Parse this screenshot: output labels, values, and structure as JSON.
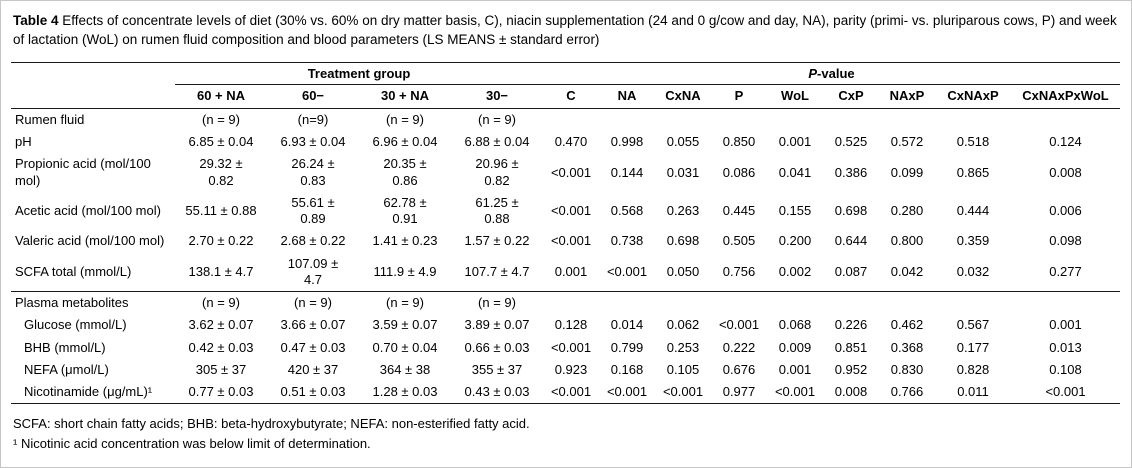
{
  "caption": {
    "label": "Table 4",
    "text": " Effects of concentrate levels of diet (30% vs. 60% on dry matter basis, C), niacin supplementation (24 and 0 g/cow and day, NA), parity (primi- vs. pluriparous cows, P) and week of lactation (WoL) on rumen fluid composition and blood parameters (LS MEANS ± standard error)"
  },
  "table": {
    "group_headers": {
      "treatment": "Treatment group",
      "pvalue_italic": "P",
      "pvalue_rest": "-value"
    },
    "columns": [
      "60 + NA",
      "60−",
      "30 + NA",
      "30−",
      "C",
      "NA",
      "CxNA",
      "P",
      "WoL",
      "CxP",
      "NAxP",
      "CxNAxP",
      "CxNAxPxWoL"
    ],
    "rows": [
      {
        "label": "Rumen fluid",
        "section": true,
        "cells": [
          "(n = 9)",
          "(n=9)",
          "(n = 9)",
          "(n = 9)",
          "",
          "",
          "",
          "",
          "",
          "",
          "",
          "",
          ""
        ]
      },
      {
        "label": "pH",
        "cells": [
          "6.85 ± 0.04",
          "6.93 ± 0.04",
          "6.96 ± 0.04",
          "6.88 ± 0.04",
          "0.470",
          "0.998",
          "0.055",
          "0.850",
          "0.001",
          "0.525",
          "0.572",
          "0.518",
          "0.124"
        ]
      },
      {
        "label": "Propionic acid (mol/100 mol)",
        "cells": [
          "29.32 ± 0.82",
          "26.24 ± 0.83",
          "20.35 ± 0.86",
          "20.96 ± 0.82",
          "<0.001",
          "0.144",
          "0.031",
          "0.086",
          "0.041",
          "0.386",
          "0.099",
          "0.865",
          "0.008"
        ]
      },
      {
        "label": "Acetic acid (mol/100 mol)",
        "cells": [
          "55.11 ± 0.88",
          "55.61 ± 0.89",
          "62.78 ± 0.91",
          "61.25 ± 0.88",
          "<0.001",
          "0.568",
          "0.263",
          "0.445",
          "0.155",
          "0.698",
          "0.280",
          "0.444",
          "0.006"
        ]
      },
      {
        "label": "Valeric acid (mol/100 mol)",
        "cells": [
          "2.70 ± 0.22",
          "2.68 ± 0.22",
          "1.41 ± 0.23",
          "1.57 ± 0.22",
          "<0.001",
          "0.738",
          "0.698",
          "0.505",
          "0.200",
          "0.644",
          "0.800",
          "0.359",
          "0.098"
        ]
      },
      {
        "label": "SCFA total (mmol/L)",
        "divider_after": true,
        "cells": [
          "138.1 ± 4.7",
          "107.09 ± 4.7",
          "111.9 ± 4.9",
          "107.7 ± 4.7",
          "0.001",
          "<0.001",
          "0.050",
          "0.756",
          "0.002",
          "0.087",
          "0.042",
          "0.032",
          "0.277"
        ]
      },
      {
        "label": "Plasma metabolites",
        "section": true,
        "cells": [
          "(n = 9)",
          "(n = 9)",
          "(n = 9)",
          "(n = 9)",
          "",
          "",
          "",
          "",
          "",
          "",
          "",
          "",
          ""
        ]
      },
      {
        "label": "Glucose (mmol/L)",
        "indent": true,
        "cells": [
          "3.62 ± 0.07",
          "3.66 ± 0.07",
          "3.59 ± 0.07",
          "3.89 ± 0.07",
          "0.128",
          "0.014",
          "0.062",
          "<0.001",
          "0.068",
          "0.226",
          "0.462",
          "0.567",
          "0.001"
        ]
      },
      {
        "label": "BHB (mmol/L)",
        "indent": true,
        "cells": [
          "0.42 ± 0.03",
          "0.47 ± 0.03",
          "0.70 ± 0.04",
          "0.66 ± 0.03",
          "<0.001",
          "0.799",
          "0.253",
          "0.222",
          "0.009",
          "0.851",
          "0.368",
          "0.177",
          "0.013"
        ]
      },
      {
        "label": "NEFA (μmol/L)",
        "indent": true,
        "cells": [
          "305 ± 37",
          "420 ± 37",
          "364 ± 38",
          "355 ± 37",
          "0.923",
          "0.168",
          "0.105",
          "0.676",
          "0.001",
          "0.952",
          "0.830",
          "0.828",
          "0.108"
        ]
      },
      {
        "label": "Nicotinamide (μg/mL)¹",
        "indent": true,
        "divider_after": true,
        "cells": [
          "0.77 ± 0.03",
          "0.51 ± 0.03",
          "1.28 ± 0.03",
          "0.43 ± 0.03",
          "<0.001",
          "<0.001",
          "<0.001",
          "0.977",
          "<0.001",
          "0.008",
          "0.766",
          "0.011",
          "<0.001"
        ]
      }
    ],
    "footnotes": [
      "SCFA: short chain fatty acids; BHB: beta-hydroxybutyrate; NEFA: non-esterified fatty acid.",
      "¹ Nicotinic acid concentration was below limit of determination."
    ]
  }
}
